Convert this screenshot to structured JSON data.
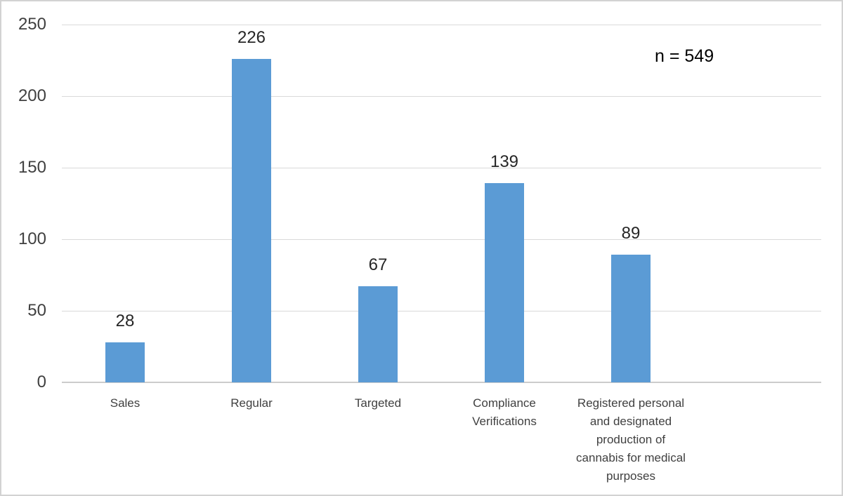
{
  "figure": {
    "annotation": "n = 549"
  },
  "chart_data": {
    "type": "bar",
    "title": "",
    "xlabel": "",
    "ylabel": "",
    "categories": [
      "Sales",
      "Regular",
      "Targeted",
      "Compliance\nVerifications",
      "Registered personal\nand designated\nproduction of\ncannabis for medical\npurposes"
    ],
    "values": [
      28,
      226,
      67,
      139,
      89
    ],
    "value_labels": [
      "28",
      "226",
      "67",
      "139",
      "89"
    ],
    "annotation": "n = 549",
    "ylim": [
      0,
      250
    ],
    "yticks": [
      0,
      50,
      100,
      150,
      200,
      250
    ],
    "grid": "horizontal",
    "legend": "none",
    "bar_color": "#5B9BD5",
    "gridline_color": "#D9D9D9",
    "axis_text_color": "#404040",
    "value_text_color": "#262626",
    "annotation_color": "#000000",
    "background_color": "#FFFFFF",
    "border_color": "#D2D2D2"
  }
}
